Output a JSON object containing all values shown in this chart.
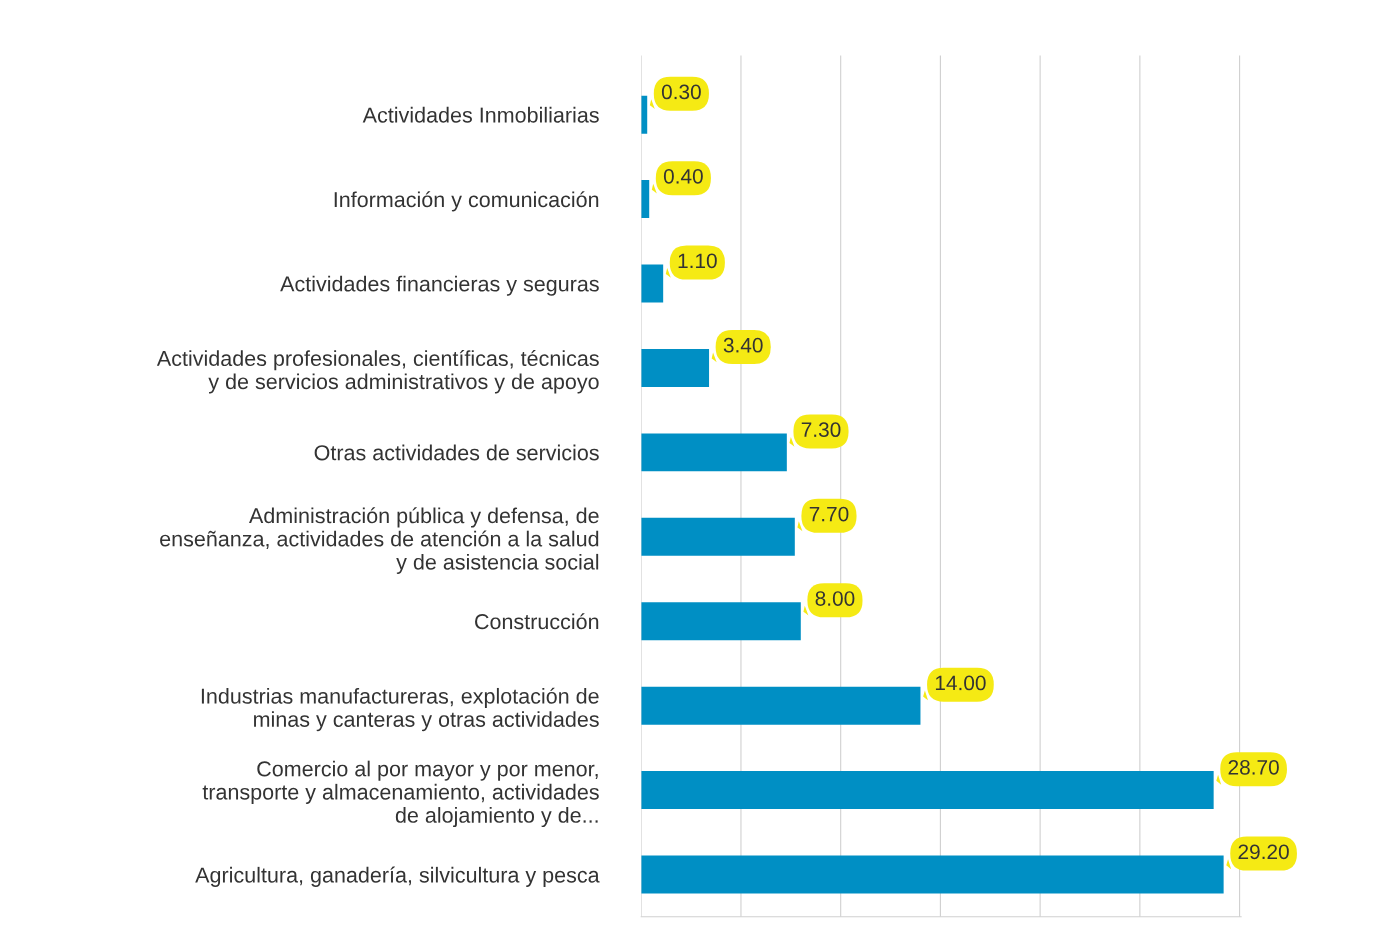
{
  "chart_data": {
    "type": "bar",
    "orientation": "horizontal",
    "categories": [
      "Actividades Inmobiliarias",
      "Información y comunicación",
      "Actividades financieras y seguras",
      "Actividades profesionales, científicas, técnicas\ny de servicios administrativos y de apoyo",
      "Otras actividades de servicios",
      "Administración pública y defensa, de\nenseñanza, actividades de atención a la salud\ny de asistencia social",
      "Construcción",
      "Industrias manufactureras, explotación de\nminas y canteras y otras actividades",
      "Comercio al por mayor y por menor,\ntransporte y almacenamiento, actividades\nde alojamiento y de...",
      "Agricultura, ganadería, silvicultura y pesca"
    ],
    "values": [
      0.3,
      0.4,
      1.1,
      3.4,
      7.3,
      7.7,
      8.0,
      14.0,
      28.7,
      29.2
    ],
    "value_labels": [
      "0.30",
      "0.40",
      "1.10",
      "3.40",
      "7.30",
      "7.70",
      "8.00",
      "14.00",
      "28.70",
      "29.20"
    ],
    "color": "#008fc4",
    "grid": "x",
    "tick_labels": "y",
    "legend": false
  }
}
